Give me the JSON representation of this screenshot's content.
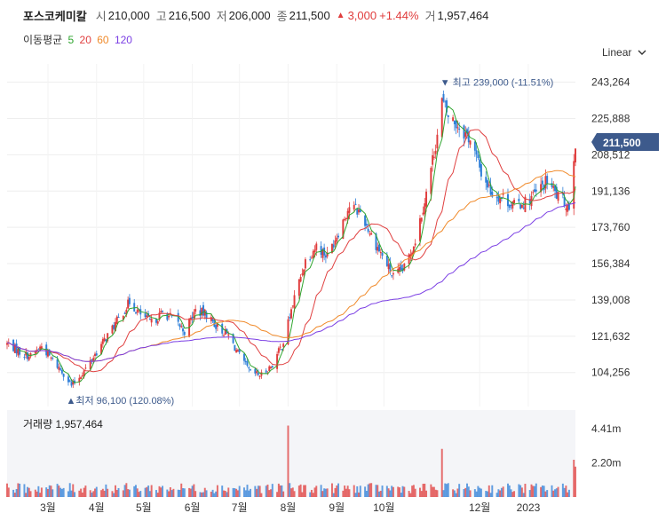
{
  "header": {
    "name": "포스코케미칼",
    "open_label": "시",
    "open": "210,000",
    "high_label": "고",
    "high": "216,500",
    "low_label": "저",
    "low": "206,000",
    "close_label": "종",
    "close": "211,500",
    "change_arrow": "▲",
    "change": "3,000",
    "change_pct": "+1.44%",
    "volume_label": "거",
    "volume": "1,957,464"
  },
  "ma_legend": {
    "label": "이동평균",
    "items": [
      {
        "period": "5",
        "color": "#2fa52f"
      },
      {
        "period": "20",
        "color": "#e04040"
      },
      {
        "period": "60",
        "color": "#f08a2a"
      },
      {
        "period": "120",
        "color": "#7b3fe4"
      }
    ]
  },
  "scale_button": {
    "label": "Linear",
    "icon": "chevron-down-icon"
  },
  "colors": {
    "up": "#e03c3c",
    "down": "#2f7fd8",
    "last_price_tag": "#3d5a8c"
  },
  "chart_data": {
    "type": "candlestick",
    "price_ticks": [
      "243,264",
      "225,888",
      "208,512",
      "191,136",
      "173,760",
      "156,384",
      "139,008",
      "121,632",
      "104,256"
    ],
    "price_tick_values": [
      243264,
      225888,
      208512,
      191136,
      173760,
      156384,
      139008,
      121632,
      104256
    ],
    "ylim": [
      88000,
      252000
    ],
    "last_price": {
      "label": "211,500",
      "value": 211500
    },
    "high_marker": {
      "label": "▼ 최고 239,000 (-11.51%)",
      "value": 239000,
      "date": "2022-11-07"
    },
    "low_marker": {
      "label": "▲최저 96,100 (120.08%)",
      "value": 96100,
      "date": "2022-03-16"
    },
    "x_ticks": [
      "3월",
      "4월",
      "5월",
      "6월",
      "7월",
      "8월",
      "9월",
      "10월",
      "12월",
      "2023"
    ],
    "x_tick_dates": [
      "2022-03-01",
      "2022-04-01",
      "2022-05-01",
      "2022-06-01",
      "2022-07-01",
      "2022-08-01",
      "2022-09-01",
      "2022-10-01",
      "2022-12-01",
      "2023-01-01"
    ],
    "x_range": [
      "2022-02-03",
      "2023-01-31"
    ],
    "closes": [
      [
        "2022-02-04",
        118000
      ],
      [
        "2022-02-11",
        114000
      ],
      [
        "2022-02-18",
        112000
      ],
      [
        "2022-02-25",
        117000
      ],
      [
        "2022-03-04",
        110000
      ],
      [
        "2022-03-11",
        104000
      ],
      [
        "2022-03-16",
        98000
      ],
      [
        "2022-03-18",
        99500
      ],
      [
        "2022-03-25",
        106000
      ],
      [
        "2022-03-31",
        113000
      ],
      [
        "2022-04-08",
        122000
      ],
      [
        "2022-04-15",
        130000
      ],
      [
        "2022-04-22",
        138000
      ],
      [
        "2022-04-29",
        132000
      ],
      [
        "2022-05-06",
        128000
      ],
      [
        "2022-05-13",
        133000
      ],
      [
        "2022-05-20",
        130000
      ],
      [
        "2022-05-27",
        124000
      ],
      [
        "2022-06-03",
        134000
      ],
      [
        "2022-06-10",
        132000
      ],
      [
        "2022-06-17",
        126000
      ],
      [
        "2022-06-24",
        122000
      ],
      [
        "2022-07-01",
        112000
      ],
      [
        "2022-07-08",
        104000
      ],
      [
        "2022-07-15",
        103000
      ],
      [
        "2022-07-22",
        108000
      ],
      [
        "2022-07-29",
        119000
      ],
      [
        "2022-08-05",
        140000
      ],
      [
        "2022-08-12",
        158000
      ],
      [
        "2022-08-19",
        165000
      ],
      [
        "2022-08-26",
        160000
      ],
      [
        "2022-09-02",
        172000
      ],
      [
        "2022-09-09",
        184000
      ],
      [
        "2022-09-16",
        181000
      ],
      [
        "2022-09-23",
        170000
      ],
      [
        "2022-09-30",
        160000
      ],
      [
        "2022-10-07",
        150000
      ],
      [
        "2022-10-14",
        154000
      ],
      [
        "2022-10-21",
        168000
      ],
      [
        "2022-10-28",
        190000
      ],
      [
        "2022-11-04",
        218000
      ],
      [
        "2022-11-07",
        234000
      ],
      [
        "2022-11-11",
        227000
      ],
      [
        "2022-11-18",
        222000
      ],
      [
        "2022-11-25",
        216000
      ],
      [
        "2022-12-02",
        200000
      ],
      [
        "2022-12-09",
        190000
      ],
      [
        "2022-12-16",
        188000
      ],
      [
        "2022-12-23",
        184000
      ],
      [
        "2022-12-30",
        186000
      ],
      [
        "2023-01-06",
        190000
      ],
      [
        "2023-01-13",
        196000
      ],
      [
        "2023-01-20",
        188000
      ],
      [
        "2023-01-27",
        184000
      ],
      [
        "2023-01-30",
        208500
      ],
      [
        "2023-01-31",
        211500
      ]
    ],
    "volume": {
      "label": "거래량 1,957,464",
      "ticks": [
        "4.41m",
        "2.20m"
      ],
      "tick_values": [
        4410000,
        2200000
      ],
      "ylim": [
        0,
        5600000
      ],
      "spikes": [
        [
          "2022-08-01",
          4600000
        ],
        [
          "2022-11-07",
          3100000
        ],
        [
          "2023-01-30",
          2400000
        ],
        [
          "2023-01-31",
          1957464
        ]
      ]
    },
    "moving_averages": [
      {
        "period": 5,
        "color": "#2fa52f"
      },
      {
        "period": 20,
        "color": "#e04040"
      },
      {
        "period": 60,
        "color": "#f08a2a"
      },
      {
        "period": 120,
        "color": "#7b3fe4"
      }
    ]
  }
}
